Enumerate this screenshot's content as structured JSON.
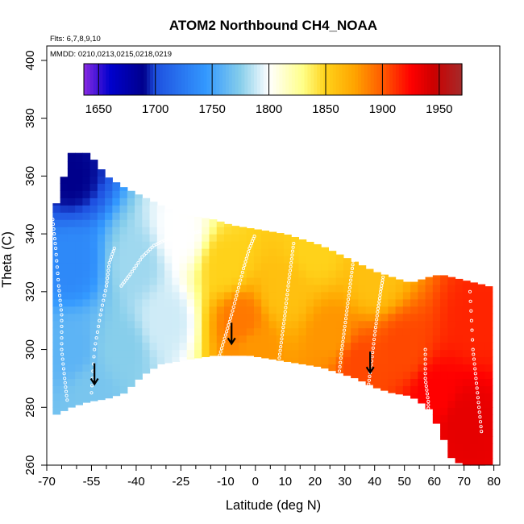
{
  "chart_data": {
    "type": "heatmap",
    "title": "ATOM2 Northbound CH4_NOAA",
    "notes": {
      "flights": "Flts: 6,7,8,9,10",
      "dates": "MMDD: 0210,0213,0215,0218,0219"
    },
    "xlabel": "Latitude (deg N)",
    "ylabel": "Theta (C)",
    "xlim": [
      -70,
      82
    ],
    "ylim": [
      260,
      405
    ],
    "x_ticks_major": [
      -70,
      -55,
      -40,
      -25,
      -10,
      0,
      10,
      20,
      30,
      40,
      50,
      60,
      70,
      80
    ],
    "x_ticks_minor": [
      -65,
      -60,
      -50,
      -45,
      -35,
      -30,
      -20,
      -15,
      -5,
      5,
      15,
      25,
      35,
      45,
      55,
      65,
      75
    ],
    "y_ticks": [
      260,
      280,
      300,
      320,
      340,
      360,
      380,
      400
    ],
    "colorbar": {
      "min": 1637,
      "max": 1970,
      "ticks": [
        1650,
        1700,
        1750,
        1800,
        1850,
        1900,
        1950
      ],
      "stops": [
        [
          1637,
          "#8a2be2"
        ],
        [
          1660,
          "#0000cd"
        ],
        [
          1690,
          "#00008b"
        ],
        [
          1700,
          "#1e50e0"
        ],
        [
          1745,
          "#3399ff"
        ],
        [
          1775,
          "#87ceeb"
        ],
        [
          1800,
          "#ffffff"
        ],
        [
          1830,
          "#ffff88"
        ],
        [
          1850,
          "#ffd21a"
        ],
        [
          1875,
          "#ffa500"
        ],
        [
          1900,
          "#ff5a00"
        ],
        [
          1925,
          "#ff0000"
        ],
        [
          1945,
          "#cc0000"
        ],
        [
          1970,
          "#a52a2a"
        ]
      ]
    },
    "envelope": {
      "lat": [
        -68,
        -62,
        -56,
        -50,
        -44,
        -38,
        -32,
        -26,
        -20,
        -14,
        -8,
        -2,
        4,
        10,
        16,
        22,
        28,
        34,
        40,
        46,
        52,
        58,
        62,
        66,
        70,
        74,
        78,
        80
      ],
      "theta_top": [
        346,
        368,
        368,
        360,
        356,
        353,
        350,
        347,
        346,
        345,
        343,
        342,
        341,
        340,
        338,
        336,
        333,
        330,
        327,
        325,
        323,
        325,
        326,
        325,
        324,
        323,
        322,
        321
      ],
      "theta_bottom": [
        277,
        280,
        282,
        283,
        285,
        291,
        295,
        296,
        297,
        298,
        298,
        298,
        297,
        296,
        295,
        294,
        292,
        290,
        287,
        285,
        284,
        280,
        272,
        262,
        260,
        260,
        260,
        262
      ]
    },
    "field_control_points": [
      {
        "lat": -62,
        "theta": 360,
        "ch4": 1690
      },
      {
        "lat": -62,
        "theta": 330,
        "ch4": 1735
      },
      {
        "lat": -62,
        "theta": 300,
        "ch4": 1760
      },
      {
        "lat": -55,
        "theta": 285,
        "ch4": 1770
      },
      {
        "lat": -45,
        "theta": 300,
        "ch4": 1775
      },
      {
        "lat": -40,
        "theta": 330,
        "ch4": 1780
      },
      {
        "lat": -30,
        "theta": 310,
        "ch4": 1790
      },
      {
        "lat": -25,
        "theta": 340,
        "ch4": 1800
      },
      {
        "lat": -10,
        "theta": 330,
        "ch4": 1850
      },
      {
        "lat": -5,
        "theta": 310,
        "ch4": 1890
      },
      {
        "lat": 0,
        "theta": 300,
        "ch4": 1880
      },
      {
        "lat": 10,
        "theta": 320,
        "ch4": 1860
      },
      {
        "lat": 20,
        "theta": 335,
        "ch4": 1850
      },
      {
        "lat": 25,
        "theta": 305,
        "ch4": 1880
      },
      {
        "lat": 35,
        "theta": 295,
        "ch4": 1905
      },
      {
        "lat": 40,
        "theta": 325,
        "ch4": 1860
      },
      {
        "lat": 50,
        "theta": 300,
        "ch4": 1905
      },
      {
        "lat": 60,
        "theta": 285,
        "ch4": 1925
      },
      {
        "lat": 70,
        "theta": 275,
        "ch4": 1935
      },
      {
        "lat": 75,
        "theta": 310,
        "ch4": 1915
      }
    ],
    "flight_tracks": [
      {
        "lat": [
          -68,
          -67,
          -66,
          -65,
          -65,
          -64,
          -63
        ],
        "theta": [
          345,
          335,
          322,
          312,
          300,
          290,
          281
        ]
      },
      {
        "lat": [
          -55,
          -54,
          -52,
          -50,
          -49,
          -47
        ],
        "theta": [
          285,
          300,
          312,
          322,
          330,
          336
        ]
      },
      {
        "lat": [
          -45,
          -42,
          -38,
          -34,
          -30,
          -26,
          -22,
          -18
        ],
        "theta": [
          322,
          326,
          332,
          336,
          338,
          339,
          340,
          341
        ]
      },
      {
        "lat": [
          -12,
          -10,
          -8,
          -6,
          -4,
          -2,
          0
        ],
        "theta": [
          298,
          305,
          312,
          320,
          328,
          335,
          340
        ]
      },
      {
        "lat": [
          8,
          9,
          10,
          11,
          12,
          13
        ],
        "theta": [
          297,
          305,
          313,
          322,
          330,
          338
        ]
      },
      {
        "lat": [
          28,
          29,
          30,
          31,
          32,
          33,
          34
        ],
        "theta": [
          291,
          300,
          308,
          316,
          324,
          332,
          336
        ]
      },
      {
        "lat": [
          38,
          39,
          40,
          41,
          42,
          43
        ],
        "theta": [
          288,
          296,
          305,
          313,
          320,
          326
        ]
      },
      {
        "lat": [
          57,
          57,
          58,
          58,
          59
        ],
        "theta": [
          300,
          290,
          282,
          275,
          268
        ]
      },
      {
        "lat": [
          72,
          73,
          74,
          75,
          76
        ],
        "theta": [
          320,
          300,
          290,
          280,
          270
        ]
      }
    ],
    "arrows": [
      {
        "lat": -54,
        "theta": 288
      },
      {
        "lat": -8,
        "theta": 302
      },
      {
        "lat": 38.5,
        "theta": 292
      }
    ]
  }
}
